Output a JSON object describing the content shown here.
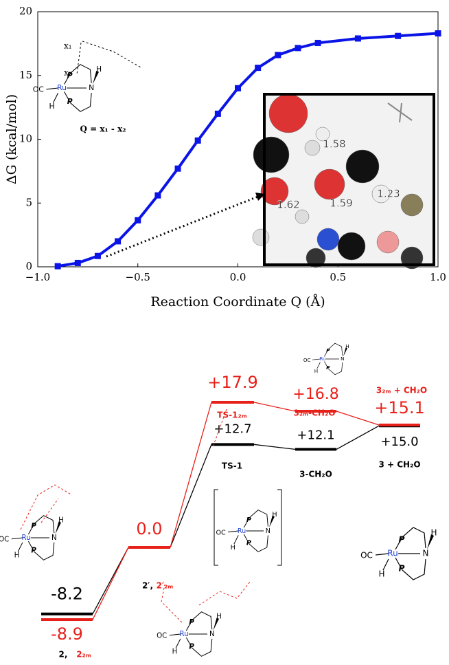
{
  "chart_data": [
    {
      "type": "line",
      "xlabel": "Reaction Coordinate Q (Å)",
      "ylabel": "ΔG (kcal/mol)",
      "color": "#0a14e6",
      "x": [
        -0.9,
        -0.8,
        -0.7,
        -0.6,
        -0.5,
        -0.4,
        -0.3,
        -0.2,
        -0.1,
        0.0,
        0.1,
        0.2,
        0.3,
        0.4,
        0.6,
        0.8,
        1.0
      ],
      "values": [
        0.05,
        0.3,
        0.85,
        2.0,
        3.65,
        5.6,
        7.7,
        9.9,
        12.0,
        14.0,
        15.6,
        16.6,
        17.15,
        17.55,
        17.9,
        18.1,
        18.3
      ],
      "xlim": [
        -1.0,
        1.0
      ],
      "ylim": [
        0,
        20
      ],
      "xticks": [
        {
          "value": -1.0,
          "label": "−1.0"
        },
        {
          "value": -0.5,
          "label": "−0.5"
        },
        {
          "value": 0.0,
          "label": "0.0"
        },
        {
          "value": 0.5,
          "label": "0.5"
        },
        {
          "value": 1.0,
          "label": "1.0"
        }
      ],
      "yticks": [
        0,
        5,
        10,
        15,
        20
      ],
      "inset_equation": "Q = x₁ - x₂",
      "inset_x_labels": [
        "x₁",
        "x₂"
      ],
      "inset_distances": [
        "1.58",
        "1.62",
        "1.59",
        "1.23"
      ]
    },
    {
      "type": "energy-diagram",
      "categories": [
        "2,",
        "2′,",
        "TS-1",
        "3-CH₂O",
        "3 + CH₂O"
      ],
      "series": [
        {
          "color": "#000000",
          "values": [
            -8.2,
            0.0,
            12.7,
            12.1,
            15.0
          ],
          "value_labels": [
            "-8.2",
            null,
            "+12.7",
            "+12.1",
            "+15.0"
          ]
        },
        {
          "color": "#e8201a",
          "values": [
            -8.9,
            0.0,
            17.9,
            16.8,
            15.1
          ],
          "value_labels": [
            "-8.9",
            "0.0",
            "+17.9",
            "+16.8",
            "+15.1"
          ],
          "category_labels": [
            "2₂ₘ",
            "2′₂ₘ",
            "TS-1₂ₘ",
            "3₂ₘ-CH₂O",
            "3₂ₘ + CH₂O"
          ]
        }
      ]
    }
  ],
  "structures": [
    {
      "atoms": [
        "OC",
        "Ru",
        "P",
        "P",
        "N",
        "H",
        "H"
      ]
    },
    {
      "atoms": [
        "OC",
        "Ru",
        "P",
        "P",
        "N",
        "H",
        "H"
      ]
    },
    {
      "atoms": [
        "OC",
        "Ru",
        "P",
        "P",
        "N",
        "H",
        "H"
      ]
    },
    {
      "atoms": [
        "OC",
        "Ru",
        "P",
        "P",
        "N",
        "H",
        "H"
      ]
    },
    {
      "atoms": [
        "OC",
        "Ru",
        "P",
        "P",
        "N",
        "H",
        "H"
      ]
    },
    {
      "atoms": [
        "OC",
        "Ru",
        "P",
        "P",
        "N",
        "H",
        "H"
      ]
    }
  ]
}
